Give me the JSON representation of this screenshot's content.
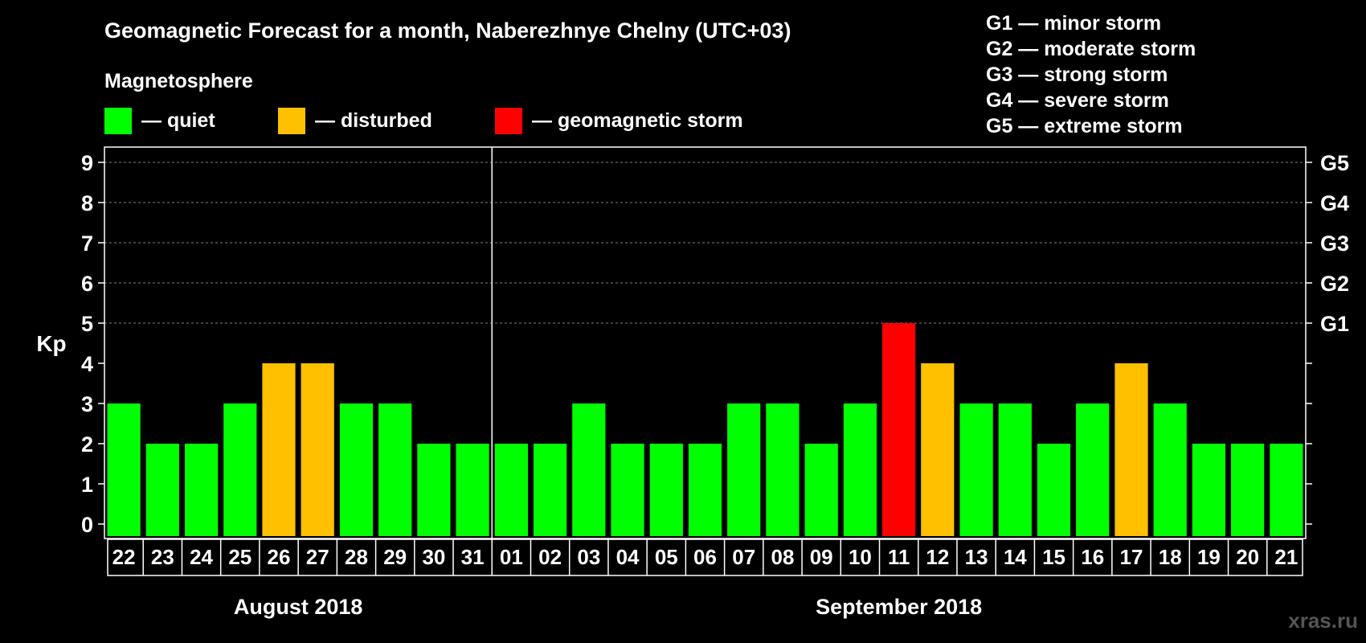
{
  "chart_data": {
    "type": "bar",
    "title": "Geomagnetic Forecast for a month, Naberezhnye Chelny (UTC+03)",
    "ylabel": "Kp",
    "ylim": [
      0,
      9
    ],
    "yticks": [
      "0",
      "1",
      "2",
      "3",
      "4",
      "5",
      "6",
      "7",
      "8",
      "9"
    ],
    "right_ticks": [
      {
        "kp": 5,
        "label": "G1"
      },
      {
        "kp": 6,
        "label": "G2"
      },
      {
        "kp": 7,
        "label": "G3"
      },
      {
        "kp": 8,
        "label": "G4"
      },
      {
        "kp": 9,
        "label": "G5"
      }
    ],
    "legend": {
      "title": "Magnetosphere",
      "items": [
        {
          "label": "— quiet",
          "color": "#00ff00"
        },
        {
          "label": "— disturbed",
          "color": "#ffc000"
        },
        {
          "label": "— geomagnetic storm",
          "color": "#ff0000"
        }
      ]
    },
    "storm_scale": [
      "G1 — minor storm",
      "G2 — moderate storm",
      "G3 — strong storm",
      "G4 — severe storm",
      "G5 — extreme storm"
    ],
    "months": [
      "August 2018",
      "September 2018"
    ],
    "categories": [
      "22",
      "23",
      "24",
      "25",
      "26",
      "27",
      "28",
      "29",
      "30",
      "31",
      "01",
      "02",
      "03",
      "04",
      "05",
      "06",
      "07",
      "08",
      "09",
      "10",
      "11",
      "12",
      "13",
      "14",
      "15",
      "16",
      "17",
      "18",
      "19",
      "20",
      "21"
    ],
    "month_of_category": [
      0,
      0,
      0,
      0,
      0,
      0,
      0,
      0,
      0,
      0,
      1,
      1,
      1,
      1,
      1,
      1,
      1,
      1,
      1,
      1,
      1,
      1,
      1,
      1,
      1,
      1,
      1,
      1,
      1,
      1,
      1
    ],
    "values": [
      3,
      2,
      2,
      3,
      4,
      4,
      3,
      3,
      2,
      2,
      2,
      2,
      3,
      2,
      2,
      2,
      3,
      3,
      2,
      3,
      5,
      4,
      3,
      3,
      2,
      3,
      4,
      3,
      2,
      2,
      2
    ],
    "status": [
      "quiet",
      "quiet",
      "quiet",
      "quiet",
      "disturbed",
      "disturbed",
      "quiet",
      "quiet",
      "quiet",
      "quiet",
      "quiet",
      "quiet",
      "quiet",
      "quiet",
      "quiet",
      "quiet",
      "quiet",
      "quiet",
      "quiet",
      "quiet",
      "geomagnetic storm",
      "disturbed",
      "quiet",
      "quiet",
      "quiet",
      "quiet",
      "disturbed",
      "quiet",
      "quiet",
      "quiet",
      "quiet"
    ],
    "colors": {
      "quiet": "#00ff00",
      "disturbed": "#ffc000",
      "geomagnetic storm": "#ff0000",
      "grid": "#808080",
      "frame": "#ffffff"
    },
    "grid": true,
    "watermark": "xras.ru"
  }
}
